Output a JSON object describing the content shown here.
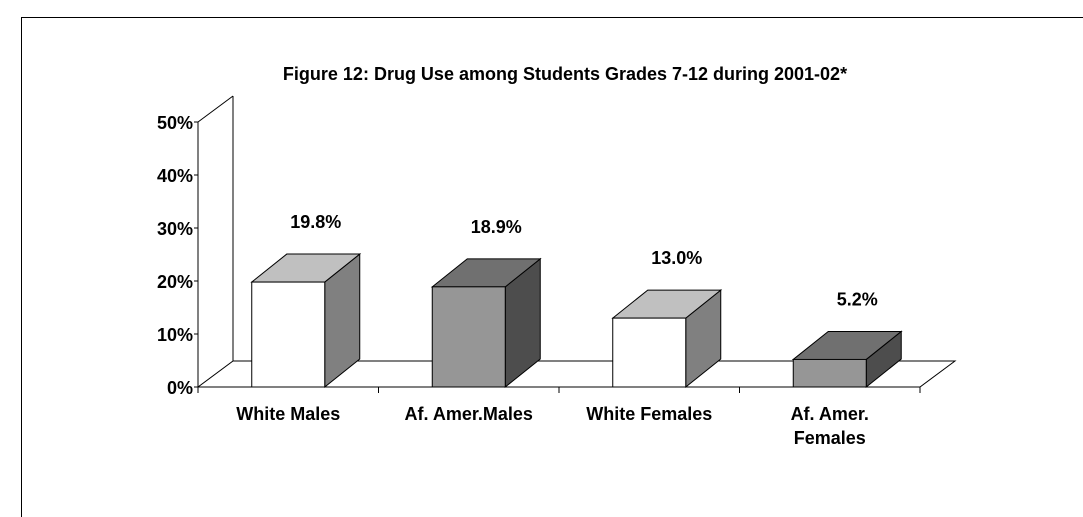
{
  "chart_data": {
    "type": "bar",
    "title": "Figure 12: Drug Use among Students Grades 7-12 during 2001-02*",
    "xlabel": "",
    "ylabel": "",
    "ylim": [
      0,
      50
    ],
    "yticks": [
      "0%",
      "10%",
      "20%",
      "30%",
      "40%",
      "50%"
    ],
    "categories": [
      [
        "White Males"
      ],
      [
        "Af. Amer.Males"
      ],
      [
        "White Females"
      ],
      [
        "Af. Amer.",
        "Females"
      ]
    ],
    "values": [
      19.8,
      18.9,
      13.0,
      5.2
    ],
    "data_labels": [
      "19.8%",
      "18.9%",
      "13.0%",
      "5.2%"
    ],
    "grid": false,
    "three_d": true,
    "bar_styles": [
      {
        "front": "#ffffff",
        "top": "#c0c0c0",
        "side": "#808080"
      },
      {
        "front": "#969696",
        "top": "#707070",
        "side": "#4d4d4d"
      },
      {
        "front": "#ffffff",
        "top": "#c0c0c0",
        "side": "#808080"
      },
      {
        "front": "#969696",
        "top": "#707070",
        "side": "#4d4d4d"
      }
    ]
  }
}
